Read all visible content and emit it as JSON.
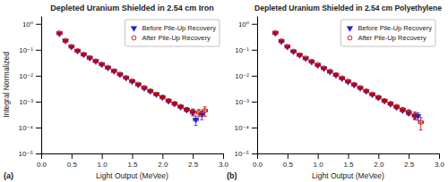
{
  "chart_data": [
    {
      "type": "scatter",
      "title": "Depleted Uranium Shielded in 2.54 cm Iron",
      "x_label": "Light Output (MeVee)",
      "y_label": "Integral Normalized",
      "annotations": [
        "(a)"
      ],
      "log": "y",
      "grid": false,
      "legend": "upper right",
      "xlim": [
        0,
        3
      ],
      "ylim": [
        1e-05,
        2.0
      ],
      "xticks": [
        {
          "value": 0,
          "label": "0.0"
        },
        {
          "value": 0.5,
          "label": "0.5"
        },
        {
          "value": 1,
          "label": "1.0"
        },
        {
          "value": 1.5,
          "label": "1.5"
        },
        {
          "value": 2,
          "label": "2.0"
        },
        {
          "value": 2.5,
          "label": "2.5"
        },
        {
          "value": 3,
          "label": "3.0"
        }
      ],
      "yticks": [
        {
          "value": 1e-05,
          "label": "10⁻⁵"
        },
        {
          "value": 0.0001,
          "label": "10⁻⁴"
        },
        {
          "value": 0.001,
          "label": "10⁻³"
        },
        {
          "value": 0.01,
          "label": "10⁻²"
        },
        {
          "value": 0.1,
          "label": "10⁻¹"
        },
        {
          "value": 1,
          "label": "10⁰"
        }
      ],
      "series": [
        {
          "name": "Before Pile-Up Recovery",
          "color": "#2222bb",
          "marker": "triangle-down",
          "x": [
            0.3,
            0.4,
            0.5,
            0.6,
            0.7,
            0.8,
            0.9,
            1.0,
            1.1,
            1.2,
            1.3,
            1.4,
            1.5,
            1.6,
            1.7,
            1.8,
            1.9,
            2.0,
            2.1,
            2.2,
            2.3,
            2.4,
            2.5,
            2.55,
            2.65
          ],
          "values": [
            0.42,
            0.22,
            0.13,
            0.09,
            0.065,
            0.048,
            0.036,
            0.027,
            0.02,
            0.015,
            0.011,
            0.0082,
            0.006,
            0.0045,
            0.0033,
            0.0025,
            0.0019,
            0.00145,
            0.00105,
            0.00082,
            0.00062,
            0.00048,
            0.00038,
            0.0002,
            0.00032
          ],
          "x_error": [
            0.04,
            0.04,
            0.04,
            0.04,
            0.04,
            0.04,
            0.04,
            0.04,
            0.04,
            0.04,
            0.04,
            0.04,
            0.04,
            0.04,
            0.04,
            0.04,
            0.04,
            0.04,
            0.04,
            0.04,
            0.04,
            0.04,
            0.04,
            0.04,
            0.04
          ],
          "y_error": [
            0.012,
            0.009,
            0.006,
            0.004,
            0.003,
            0.002,
            0.002,
            0.0015,
            0.001,
            0.001,
            0.0008,
            0.0006,
            0.0005,
            0.0004,
            0.0003,
            0.0002,
            0.0002,
            0.00015,
            0.00012,
            0.0001,
            8e-05,
            7e-05,
            0.0001,
            8e-05,
            0.00012
          ]
        },
        {
          "name": "After Pile-Up Recovery",
          "color": "#cc0000",
          "marker": "circle-open",
          "x": [
            0.3,
            0.4,
            0.5,
            0.6,
            0.7,
            0.8,
            0.9,
            1.0,
            1.1,
            1.2,
            1.3,
            1.4,
            1.5,
            1.6,
            1.7,
            1.8,
            1.9,
            2.0,
            2.1,
            2.2,
            2.3,
            2.4,
            2.5,
            2.6,
            2.7
          ],
          "values": [
            0.45,
            0.23,
            0.135,
            0.092,
            0.067,
            0.05,
            0.037,
            0.028,
            0.021,
            0.0155,
            0.0115,
            0.0085,
            0.0063,
            0.0047,
            0.0035,
            0.0026,
            0.00195,
            0.0015,
            0.0011,
            0.00085,
            0.00065,
            0.0005,
            0.00042,
            0.00038,
            0.00045
          ],
          "x_error": [
            0.04,
            0.04,
            0.04,
            0.04,
            0.04,
            0.04,
            0.04,
            0.04,
            0.04,
            0.04,
            0.04,
            0.04,
            0.04,
            0.04,
            0.04,
            0.04,
            0.04,
            0.04,
            0.04,
            0.04,
            0.04,
            0.04,
            0.04,
            0.04,
            0.04
          ],
          "y_error": [
            0.018,
            0.012,
            0.007,
            0.005,
            0.004,
            0.003,
            0.002,
            0.0018,
            0.0013,
            0.001,
            0.0008,
            0.0006,
            0.0004,
            0.0003,
            0.00025,
            0.0002,
            0.00016,
            0.00013,
            0.00011,
            0.0001,
            8e-05,
            8e-05,
            0.0001,
            0.00012,
            0.00018
          ]
        }
      ]
    },
    {
      "type": "scatter",
      "title": "Depleted Uranium Shielded in 2.54 cm Polyethylene",
      "x_label": "Light Output (MeVee)",
      "annotations": [
        "(b)"
      ],
      "log": "y",
      "grid": false,
      "legend": "upper right",
      "xlim": [
        0,
        3
      ],
      "ylim": [
        1e-05,
        2.0
      ],
      "xticks": [
        {
          "value": 0,
          "label": "0.0"
        },
        {
          "value": 0.5,
          "label": "0.5"
        },
        {
          "value": 1,
          "label": "1.0"
        },
        {
          "value": 1.5,
          "label": "1.5"
        },
        {
          "value": 2,
          "label": "2.0"
        },
        {
          "value": 2.5,
          "label": "2.5"
        },
        {
          "value": 3,
          "label": "3.0"
        }
      ],
      "yticks": [
        {
          "value": 1e-05,
          "label": "10⁻⁵"
        },
        {
          "value": 0.0001,
          "label": "10⁻⁴"
        },
        {
          "value": 0.001,
          "label": "10⁻³"
        },
        {
          "value": 0.01,
          "label": "10⁻²"
        },
        {
          "value": 0.1,
          "label": "10⁻¹"
        },
        {
          "value": 1,
          "label": "10⁰"
        }
      ],
      "series": [
        {
          "name": "Before Pile-Up Recovery",
          "color": "#2222bb",
          "marker": "triangle-down",
          "x": [
            0.3,
            0.4,
            0.5,
            0.6,
            0.7,
            0.8,
            0.9,
            1.0,
            1.1,
            1.2,
            1.3,
            1.4,
            1.5,
            1.6,
            1.7,
            1.8,
            1.9,
            2.0,
            2.1,
            2.2,
            2.3,
            2.4,
            2.5,
            2.6,
            2.65
          ],
          "values": [
            0.43,
            0.21,
            0.13,
            0.085,
            0.062,
            0.046,
            0.034,
            0.025,
            0.019,
            0.014,
            0.0105,
            0.0078,
            0.0058,
            0.0044,
            0.0033,
            0.0025,
            0.00185,
            0.0014,
            0.00105,
            0.0008,
            0.0006,
            0.00046,
            0.00036,
            0.00027,
            0.00028
          ],
          "x_error": [
            0.04,
            0.04,
            0.04,
            0.04,
            0.04,
            0.04,
            0.04,
            0.04,
            0.04,
            0.04,
            0.04,
            0.04,
            0.04,
            0.04,
            0.04,
            0.04,
            0.04,
            0.04,
            0.04,
            0.04,
            0.04,
            0.04,
            0.04,
            0.04,
            0.04
          ],
          "y_error": [
            0.012,
            0.008,
            0.005,
            0.004,
            0.003,
            0.002,
            0.0018,
            0.0013,
            0.001,
            0.0008,
            0.0006,
            0.0005,
            0.0004,
            0.0003,
            0.00025,
            0.0002,
            0.00015,
            0.00012,
            0.0001,
            8e-05,
            7e-05,
            6e-05,
            6e-05,
            6e-05,
            9e-05
          ]
        },
        {
          "name": "After Pile-Up Recovery",
          "color": "#cc0000",
          "marker": "circle-open",
          "x": [
            0.3,
            0.4,
            0.5,
            0.6,
            0.7,
            0.8,
            0.9,
            1.0,
            1.1,
            1.2,
            1.3,
            1.4,
            1.5,
            1.6,
            1.7,
            1.8,
            1.9,
            2.0,
            2.1,
            2.2,
            2.3,
            2.4,
            2.5,
            2.6,
            2.7
          ],
          "values": [
            0.46,
            0.22,
            0.135,
            0.088,
            0.064,
            0.048,
            0.036,
            0.027,
            0.02,
            0.0148,
            0.011,
            0.0082,
            0.0062,
            0.0046,
            0.0035,
            0.0026,
            0.00195,
            0.00148,
            0.0011,
            0.00085,
            0.00065,
            0.0005,
            0.0004,
            0.0003,
            0.00016
          ],
          "x_error": [
            0.04,
            0.04,
            0.04,
            0.04,
            0.04,
            0.04,
            0.04,
            0.04,
            0.04,
            0.04,
            0.04,
            0.04,
            0.04,
            0.04,
            0.04,
            0.04,
            0.04,
            0.04,
            0.04,
            0.04,
            0.04,
            0.04,
            0.04,
            0.04,
            0.04
          ],
          "y_error": [
            0.018,
            0.01,
            0.007,
            0.005,
            0.004,
            0.003,
            0.002,
            0.0016,
            0.0012,
            0.001,
            0.0008,
            0.0006,
            0.0004,
            0.0003,
            0.00026,
            0.0002,
            0.00016,
            0.00013,
            0.00011,
            0.0001,
            9e-05,
            8e-05,
            8e-05,
            0.0001,
            8e-05
          ]
        }
      ]
    }
  ]
}
